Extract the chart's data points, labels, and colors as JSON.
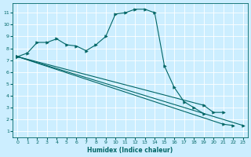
{
  "xlabel": "Humidex (Indice chaleur)",
  "bg_color": "#cceeff",
  "grid_color": "#ffffff",
  "line_color": "#006666",
  "xlim": [
    -0.5,
    23.5
  ],
  "ylim": [
    0.5,
    11.8
  ],
  "xticks": [
    0,
    1,
    2,
    3,
    4,
    5,
    6,
    7,
    8,
    9,
    10,
    11,
    12,
    13,
    14,
    15,
    16,
    17,
    18,
    19,
    20,
    21,
    22,
    23
  ],
  "yticks": [
    1,
    2,
    3,
    4,
    5,
    6,
    7,
    8,
    9,
    10,
    11
  ],
  "series": [
    {
      "x": [
        0,
        1,
        2,
        3,
        4,
        5,
        6,
        7,
        8,
        9,
        10,
        11,
        12,
        13,
        14,
        15,
        16,
        17,
        18,
        19,
        20,
        21,
        22,
        23
      ],
      "y": [
        7.3,
        7.6,
        8.5,
        8.5,
        8.8,
        8.3,
        8.2,
        7.8,
        8.3,
        9.0,
        10.9,
        11.0,
        11.3,
        11.3,
        11.0,
        6.5,
        4.7,
        3.5,
        3.0,
        2.5,
        null,
        null,
        null,
        null
      ]
    },
    {
      "comment": "Diagonal line 1 - from (0,7.3) to (23,1.5)",
      "x": [
        0,
        23
      ],
      "y": [
        7.3,
        1.5
      ]
    },
    {
      "comment": "Diagonal line 2 - from (0,7.3) to (22,1.5)",
      "x": [
        0,
        21,
        22
      ],
      "y": [
        7.3,
        1.6,
        1.5
      ]
    },
    {
      "x": [
        0,
        19,
        20,
        21
      ],
      "y": [
        7.3,
        3.2,
        2.6,
        2.6
      ]
    }
  ]
}
